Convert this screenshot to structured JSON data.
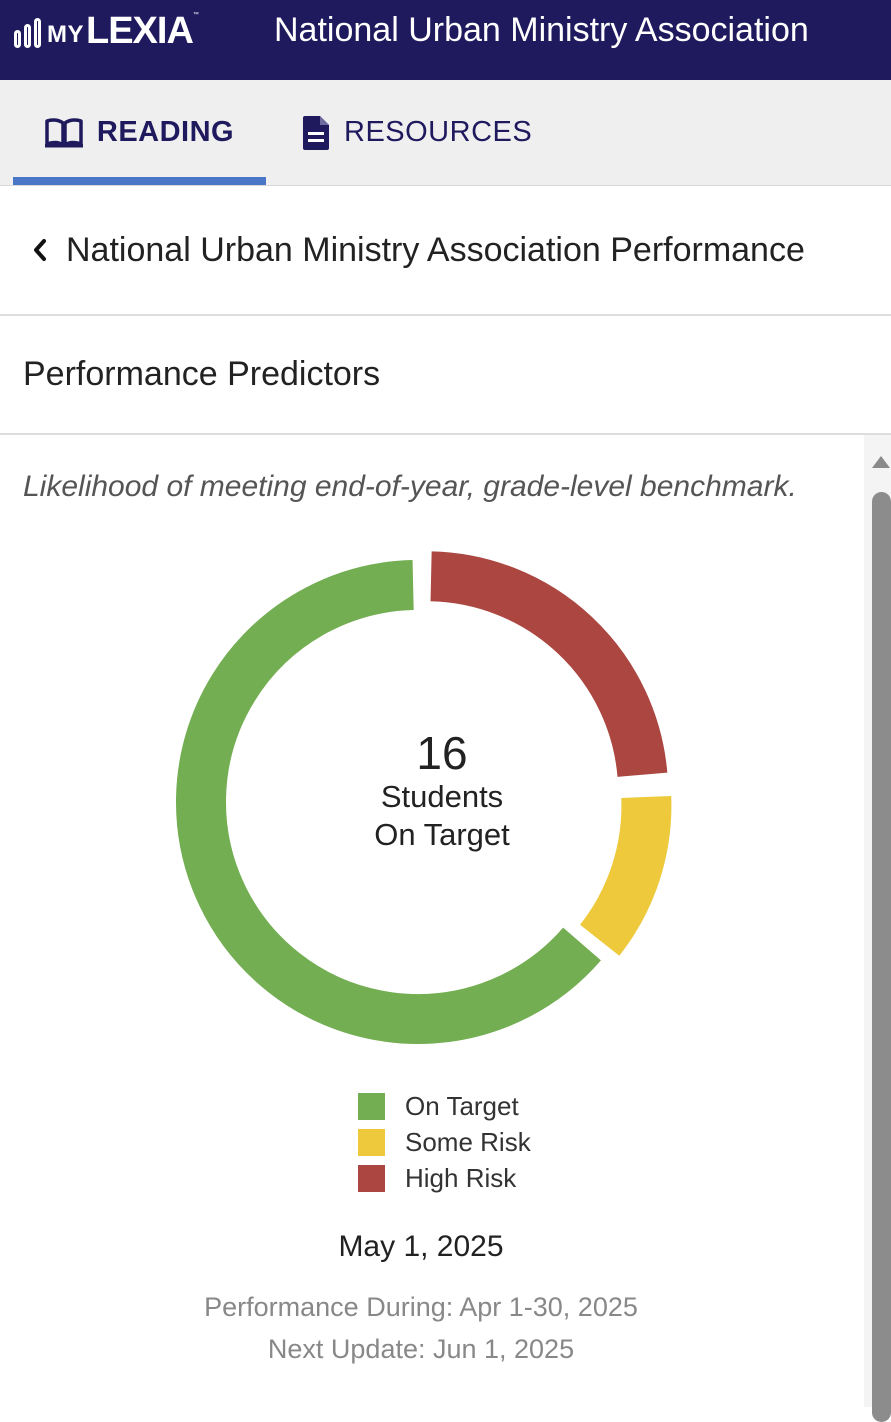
{
  "header": {
    "logo_my": "MY",
    "logo_lexia": "LEXIA",
    "logo_tm": "™",
    "org_name": "National Urban Ministry Association"
  },
  "tabs": [
    {
      "label": "READING",
      "icon": "book-open-icon",
      "active": true
    },
    {
      "label": "RESOURCES",
      "icon": "document-icon",
      "active": false
    }
  ],
  "breadcrumb": {
    "back_icon": "chevron-left-icon",
    "title": "National Urban Ministry Association Performance"
  },
  "section": {
    "title": "Performance Predictors",
    "subtitle": "Likelihood of meeting end-of-year, grade-level benchmark."
  },
  "chart_data": {
    "type": "pie",
    "categories": [
      "On Target",
      "Some Risk",
      "High Risk"
    ],
    "values": [
      16,
      3,
      6
    ],
    "colors": [
      "#73ae52",
      "#edc93b",
      "#ab4640"
    ],
    "center": {
      "count": "16",
      "line1": "Students",
      "line2": "On Target"
    },
    "legend_position": "bottom"
  },
  "legend": [
    {
      "label": "On Target",
      "color": "#73ae52"
    },
    {
      "label": "Some Risk",
      "color": "#edc93b"
    },
    {
      "label": "High Risk",
      "color": "#ab4640"
    }
  ],
  "dates": {
    "report_date": "May 1, 2025",
    "performance_during": "Performance During: Apr 1-30, 2025",
    "next_update": "Next Update: Jun 1, 2025"
  },
  "colors": {
    "header_bg": "#1f1a5e",
    "tab_accent": "#4a76c7"
  }
}
